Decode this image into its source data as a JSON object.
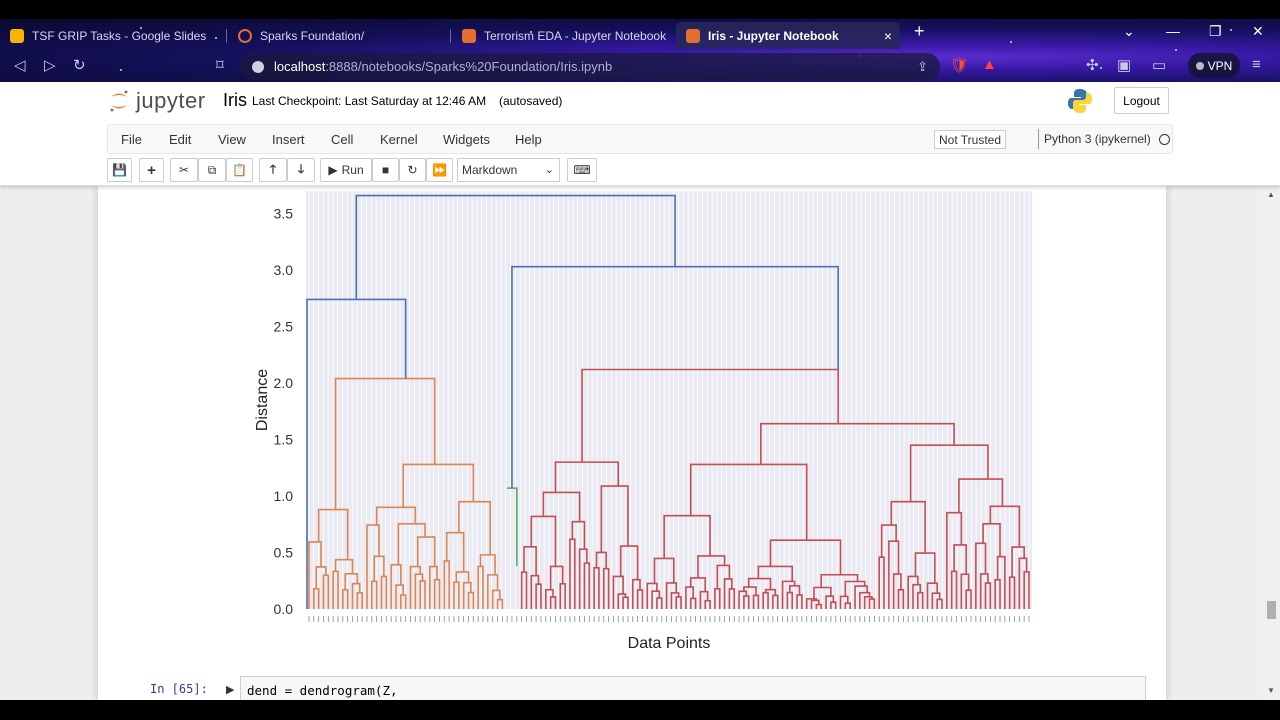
{
  "browser": {
    "tabs": [
      {
        "label": "TSF GRIP Tasks - Google Slides",
        "color": "#f6b400"
      },
      {
        "label": "Sparks Foundation/",
        "color": "#e46e2e"
      },
      {
        "label": "Terrorism EDA - Jupyter Notebook",
        "color": "#e46e2e"
      },
      {
        "label": "Iris - Jupyter Notebook",
        "color": "#e46e2e",
        "active": true
      }
    ],
    "new_tab": "+",
    "close_tab": "×",
    "url_host": "localhost",
    "url_rest": ":8888/notebooks/Sparks%20Foundation/Iris.ipynb",
    "vpn_label": "VPN"
  },
  "jupyter": {
    "logo_text": "jupyter",
    "notebook_name": "Iris",
    "checkpoint": "Last Checkpoint: Last Saturday at 12:46 AM",
    "autosave": "(autosaved)",
    "logout": "Logout",
    "menu": [
      "File",
      "Edit",
      "View",
      "Insert",
      "Cell",
      "Kernel",
      "Widgets",
      "Help"
    ],
    "trust": "Not Trusted",
    "kernel": "Python 3 (ipykernel)",
    "toolbar": {
      "run": "Run",
      "cell_type": "Markdown"
    }
  },
  "cell": {
    "prompt": "In [65]:",
    "code": "dend = dendrogram(Z,"
  },
  "chart_data": {
    "type": "dendrogram",
    "xlabel": "Data Points",
    "ylabel": "Distance",
    "yticks": [
      "0.0",
      "0.5",
      "1.0",
      "1.5",
      "2.0",
      "2.5",
      "3.0",
      "3.5"
    ],
    "ylim": [
      0,
      3.7
    ],
    "colors": {
      "link_above": "#4c72b0",
      "cluster1": "#dd8452",
      "cluster2": "#55a868",
      "cluster3": "#c44e52"
    },
    "top_merges": [
      {
        "distance": 3.66,
        "color": "link_above"
      },
      {
        "distance": 3.03,
        "color": "link_above"
      },
      {
        "distance": 2.74,
        "color": "link_above"
      },
      {
        "distance": 2.12,
        "color": "cluster3"
      },
      {
        "distance": 2.04,
        "color": "cluster1"
      },
      {
        "distance": 1.64,
        "color": "cluster3"
      },
      {
        "distance": 1.45,
        "color": "cluster3"
      },
      {
        "distance": 1.28,
        "color": "cluster1"
      },
      {
        "distance": 1.07,
        "color": "cluster2"
      }
    ],
    "grid": true
  }
}
